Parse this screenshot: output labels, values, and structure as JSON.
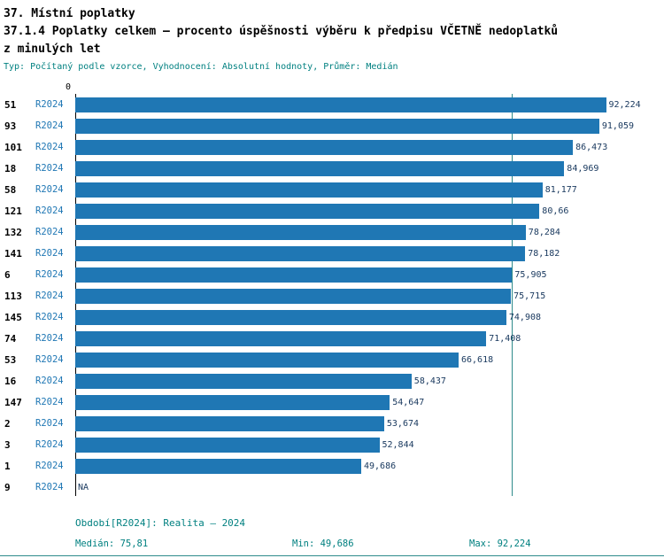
{
  "header": {
    "title_line1": "37. Místní poplatky",
    "title_line2": "37.1.4 Poplatky celkem – procento úspěšnosti výběru k předpisu VČETNĚ nedoplatků",
    "title_line3": "z minulých let",
    "meta": "Typ: Počítaný podle vzorce, Vyhodnocení: Absolutní hodnoty, Průměr: Medián"
  },
  "chart_data": {
    "type": "bar",
    "orientation": "horizontal",
    "x_axis": {
      "zero_label": "0",
      "min": 0,
      "max_value": 92.224,
      "grid": false
    },
    "median_value": 75.81,
    "rows": [
      {
        "id": "51",
        "period": "R2024",
        "value": 92.224,
        "value_label": "92,224"
      },
      {
        "id": "93",
        "period": "R2024",
        "value": 91.059,
        "value_label": "91,059"
      },
      {
        "id": "101",
        "period": "R2024",
        "value": 86.473,
        "value_label": "86,473"
      },
      {
        "id": "18",
        "period": "R2024",
        "value": 84.969,
        "value_label": "84,969"
      },
      {
        "id": "58",
        "period": "R2024",
        "value": 81.177,
        "value_label": "81,177"
      },
      {
        "id": "121",
        "period": "R2024",
        "value": 80.66,
        "value_label": "80,66"
      },
      {
        "id": "132",
        "period": "R2024",
        "value": 78.284,
        "value_label": "78,284"
      },
      {
        "id": "141",
        "period": "R2024",
        "value": 78.182,
        "value_label": "78,182"
      },
      {
        "id": "6",
        "period": "R2024",
        "value": 75.905,
        "value_label": "75,905"
      },
      {
        "id": "113",
        "period": "R2024",
        "value": 75.715,
        "value_label": "75,715"
      },
      {
        "id": "145",
        "period": "R2024",
        "value": 74.908,
        "value_label": "74,908"
      },
      {
        "id": "74",
        "period": "R2024",
        "value": 71.408,
        "value_label": "71,408"
      },
      {
        "id": "53",
        "period": "R2024",
        "value": 66.618,
        "value_label": "66,618"
      },
      {
        "id": "16",
        "period": "R2024",
        "value": 58.437,
        "value_label": "58,437"
      },
      {
        "id": "147",
        "period": "R2024",
        "value": 54.647,
        "value_label": "54,647"
      },
      {
        "id": "2",
        "period": "R2024",
        "value": 53.674,
        "value_label": "53,674"
      },
      {
        "id": "3",
        "period": "R2024",
        "value": 52.844,
        "value_label": "52,844"
      },
      {
        "id": "1",
        "period": "R2024",
        "value": 49.686,
        "value_label": "49,686"
      },
      {
        "id": "9",
        "period": "R2024",
        "value": null,
        "value_label": "NA"
      }
    ],
    "footer": {
      "period_caption": "Období[R2024]: Realita – 2024",
      "median_caption": "Medián: 75,81",
      "min_caption": "Min: 49,686",
      "max_caption": "Max: 92,224"
    },
    "colors": {
      "bar": "#1f77b4",
      "value_label": "#17375d",
      "period_label": "#1f77b4",
      "meta_text": "#008080",
      "median_line": "#2e8b8b"
    }
  }
}
